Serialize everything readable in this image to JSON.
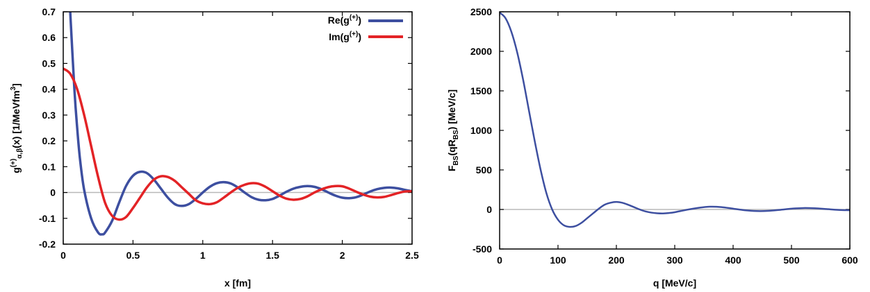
{
  "chart_data": [
    {
      "type": "line",
      "xlabel": "x [fm]",
      "ylabel_parts": [
        "g",
        "(+)",
        "α,β",
        "(x) [1/MeVfm",
        "3",
        "]"
      ],
      "xlim": [
        0,
        2.5
      ],
      "ylim": [
        -0.2,
        0.7
      ],
      "xticks": [
        0,
        0.5,
        1,
        1.5,
        2,
        2.5
      ],
      "xtick_labels": [
        "0",
        "0.5",
        "1",
        "1.5",
        "2",
        "2.5"
      ],
      "yticks": [
        -0.2,
        -0.1,
        0,
        0.1,
        0.2,
        0.3,
        0.4,
        0.5,
        0.6,
        0.7
      ],
      "ytick_labels": [
        "-0.2",
        "-0.1",
        "0",
        "0.1",
        "0.2",
        "0.3",
        "0.4",
        "0.5",
        "0.6",
        "0.7"
      ],
      "zero_line": true,
      "legend_position": "top-right",
      "series": [
        {
          "name": "Re(g(+))",
          "name_parts": [
            "Re(g",
            "(+)",
            ")"
          ],
          "color": "#3d4fa0",
          "x": [
            0.05,
            0.08,
            0.1,
            0.12,
            0.15,
            0.2,
            0.25,
            0.28,
            0.3,
            0.35,
            0.4,
            0.45,
            0.5,
            0.55,
            0.6,
            0.65,
            0.7,
            0.75,
            0.8,
            0.85,
            0.9,
            0.95,
            1.0,
            1.05,
            1.1,
            1.15,
            1.2,
            1.25,
            1.3,
            1.35,
            1.4,
            1.45,
            1.5,
            1.55,
            1.6,
            1.65,
            1.7,
            1.75,
            1.8,
            1.85,
            1.9,
            1.95,
            2.0,
            2.05,
            2.1,
            2.15,
            2.2,
            2.25,
            2.3,
            2.35,
            2.4,
            2.45,
            2.5
          ],
          "y": [
            0.7,
            0.4,
            0.25,
            0.13,
            0.01,
            -0.1,
            -0.155,
            -0.162,
            -0.155,
            -0.11,
            -0.04,
            0.025,
            0.065,
            0.08,
            0.075,
            0.05,
            0.015,
            -0.02,
            -0.045,
            -0.052,
            -0.045,
            -0.025,
            0.0,
            0.022,
            0.036,
            0.04,
            0.035,
            0.02,
            0.0,
            -0.018,
            -0.028,
            -0.03,
            -0.025,
            -0.012,
            0.003,
            0.015,
            0.022,
            0.025,
            0.022,
            0.013,
            0.0,
            -0.012,
            -0.02,
            -0.022,
            -0.018,
            -0.008,
            0.004,
            0.013,
            0.018,
            0.019,
            0.016,
            0.01,
            0.005
          ]
        },
        {
          "name": "Im(g(+))",
          "name_parts": [
            "Im(g",
            "(+)",
            ")"
          ],
          "color": "#e32326",
          "x": [
            0.0,
            0.05,
            0.1,
            0.15,
            0.2,
            0.25,
            0.3,
            0.35,
            0.4,
            0.45,
            0.5,
            0.55,
            0.6,
            0.65,
            0.7,
            0.75,
            0.8,
            0.85,
            0.9,
            0.95,
            1.0,
            1.05,
            1.1,
            1.15,
            1.2,
            1.25,
            1.3,
            1.35,
            1.4,
            1.45,
            1.5,
            1.55,
            1.6,
            1.65,
            1.7,
            1.75,
            1.8,
            1.85,
            1.9,
            1.95,
            2.0,
            2.05,
            2.1,
            2.15,
            2.2,
            2.25,
            2.3,
            2.35,
            2.4,
            2.45,
            2.5
          ],
          "y": [
            0.48,
            0.46,
            0.4,
            0.3,
            0.18,
            0.06,
            -0.04,
            -0.09,
            -0.105,
            -0.095,
            -0.06,
            -0.02,
            0.02,
            0.05,
            0.063,
            0.06,
            0.045,
            0.02,
            -0.005,
            -0.03,
            -0.042,
            -0.045,
            -0.038,
            -0.02,
            0.0,
            0.018,
            0.03,
            0.036,
            0.034,
            0.022,
            0.005,
            -0.012,
            -0.024,
            -0.028,
            -0.025,
            -0.015,
            0.0,
            0.012,
            0.021,
            0.025,
            0.024,
            0.015,
            0.003,
            -0.008,
            -0.016,
            -0.019,
            -0.017,
            -0.01,
            -0.002,
            0.004,
            0.005
          ]
        }
      ]
    },
    {
      "type": "line",
      "xlabel": "q [MeV/c]",
      "ylabel_parts": [
        "F",
        "BS",
        "(qR",
        "BS",
        ") [MeV/c]"
      ],
      "xlim": [
        0,
        600
      ],
      "ylim": [
        -500,
        2500
      ],
      "xticks": [
        0,
        100,
        200,
        300,
        400,
        500,
        600
      ],
      "xtick_labels": [
        "0",
        "100",
        "200",
        "300",
        "400",
        "500",
        "600"
      ],
      "yticks": [
        -500,
        0,
        500,
        1000,
        1500,
        2000,
        2500
      ],
      "ytick_labels": [
        "-500",
        "0",
        "500",
        "1000",
        "1500",
        "2000",
        "2500"
      ],
      "zero_line": true,
      "series": [
        {
          "color": "#3d4fa0",
          "x": [
            0,
            10,
            20,
            30,
            40,
            50,
            60,
            70,
            80,
            90,
            100,
            110,
            120,
            130,
            140,
            150,
            160,
            170,
            180,
            190,
            200,
            210,
            220,
            230,
            240,
            250,
            260,
            270,
            280,
            290,
            300,
            320,
            340,
            360,
            380,
            400,
            420,
            440,
            460,
            480,
            500,
            520,
            540,
            560,
            580,
            600
          ],
          "y": [
            2490,
            2420,
            2250,
            1990,
            1650,
            1260,
            870,
            510,
            210,
            0,
            -130,
            -200,
            -220,
            -210,
            -170,
            -110,
            -50,
            10,
            60,
            85,
            95,
            85,
            60,
            30,
            0,
            -25,
            -40,
            -48,
            -50,
            -45,
            -35,
            -5,
            20,
            35,
            30,
            10,
            -10,
            -20,
            -18,
            -5,
            10,
            18,
            15,
            5,
            -5,
            -10
          ]
        }
      ]
    }
  ]
}
